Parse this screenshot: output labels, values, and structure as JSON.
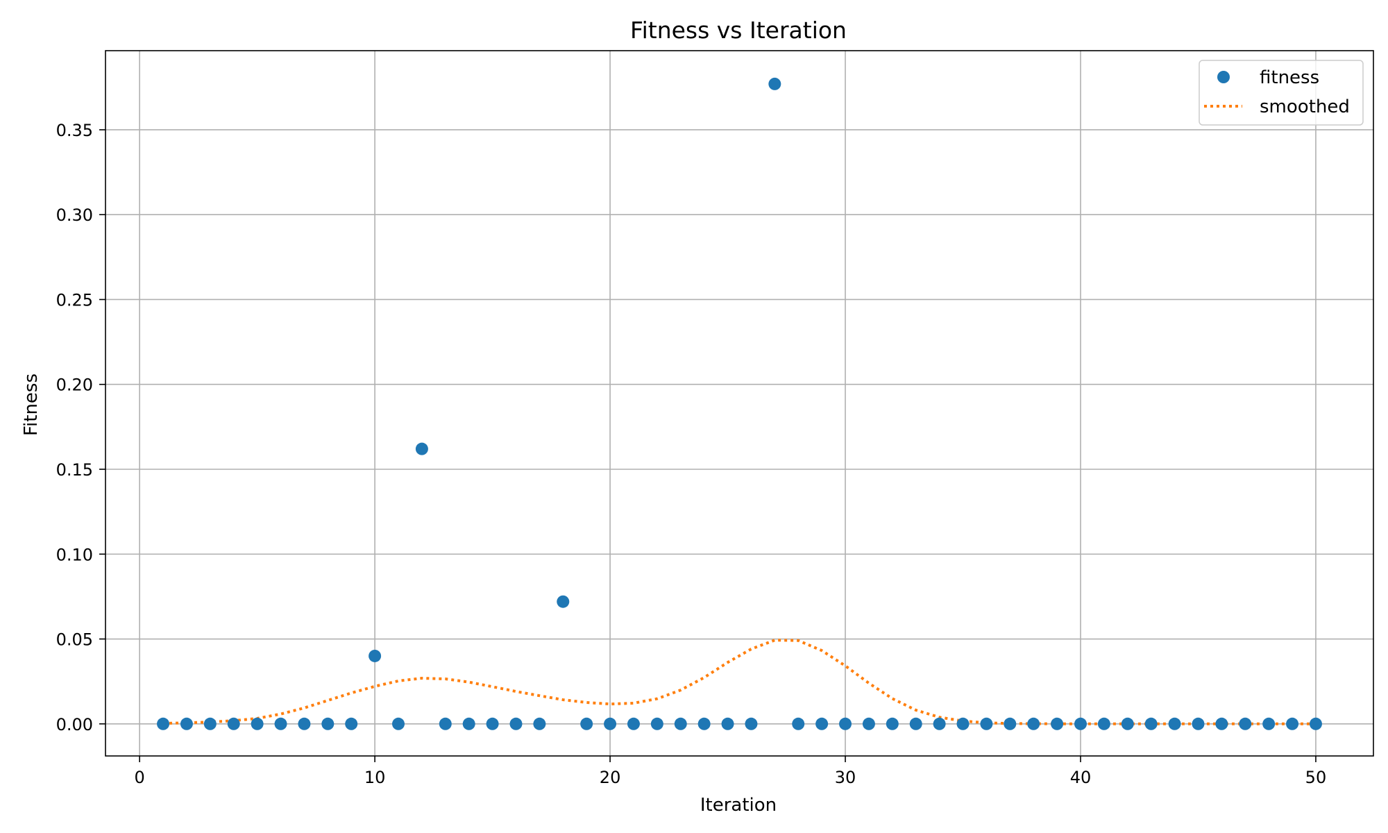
{
  "colors": {
    "fitness": "#1f77b4",
    "smoothed": "#ff7f0e",
    "grid": "#b0b0b0",
    "axes": "#000000"
  },
  "chart_data": {
    "type": "scatter",
    "title": "Fitness vs Iteration",
    "xlabel": "Iteration",
    "ylabel": "Fitness",
    "xlim": [
      -1.45,
      52.45
    ],
    "ylim": [
      -0.0189,
      0.3966
    ],
    "xticks": [
      0,
      10,
      20,
      30,
      40,
      50
    ],
    "xtick_labels": [
      "0",
      "10",
      "20",
      "30",
      "40",
      "50"
    ],
    "yticks": [
      0.0,
      0.05,
      0.1,
      0.15,
      0.2,
      0.25,
      0.3,
      0.35
    ],
    "ytick_labels": [
      "0.00",
      "0.05",
      "0.10",
      "0.15",
      "0.20",
      "0.25",
      "0.30",
      "0.35"
    ],
    "grid": true,
    "legend_position": "top-right",
    "series": [
      {
        "name": "fitness",
        "type": "scatter",
        "x": [
          1,
          2,
          3,
          4,
          5,
          6,
          7,
          8,
          9,
          10,
          11,
          12,
          13,
          14,
          15,
          16,
          17,
          18,
          19,
          20,
          21,
          22,
          23,
          24,
          25,
          26,
          27,
          28,
          29,
          30,
          31,
          32,
          33,
          34,
          35,
          36,
          37,
          38,
          39,
          40,
          41,
          42,
          43,
          44,
          45,
          46,
          47,
          48,
          49,
          50
        ],
        "y": [
          0,
          0,
          0,
          0,
          0,
          0,
          0,
          0,
          0,
          0.04,
          0,
          0.162,
          0,
          0,
          0,
          0,
          0,
          0.072,
          0,
          0,
          0,
          0,
          0,
          0,
          0,
          0,
          0.377,
          0,
          0,
          0,
          0,
          0,
          0,
          0,
          0,
          0,
          0,
          0,
          0,
          0,
          0,
          0,
          0,
          0,
          0,
          0,
          0,
          0,
          0,
          0
        ]
      },
      {
        "name": "smoothed",
        "type": "line",
        "style": "dotted",
        "x": [
          1,
          2,
          3,
          4,
          5,
          6,
          7,
          8,
          9,
          10,
          11,
          12,
          13,
          14,
          15,
          16,
          17,
          18,
          19,
          20,
          21,
          22,
          23,
          24,
          25,
          26,
          27,
          28,
          29,
          30,
          31,
          32,
          33,
          34,
          35,
          36,
          37,
          38,
          39,
          40,
          41,
          42,
          43,
          44,
          45,
          46,
          47,
          48,
          49,
          50
        ],
        "y": [
          0.0003,
          0.0006,
          0.0011,
          0.0019,
          0.0032,
          0.0058,
          0.0094,
          0.0138,
          0.0182,
          0.0221,
          0.0253,
          0.0269,
          0.0265,
          0.0246,
          0.0219,
          0.0191,
          0.0166,
          0.0142,
          0.0126,
          0.0117,
          0.0122,
          0.0148,
          0.0199,
          0.0273,
          0.0362,
          0.0441,
          0.0493,
          0.0491,
          0.0432,
          0.0342,
          0.024,
          0.0149,
          0.0081,
          0.0039,
          0.0017,
          0.0006,
          0.0002,
          0.0001,
          0,
          0,
          0,
          0,
          0,
          0,
          0,
          0,
          0,
          0,
          0,
          0
        ]
      }
    ]
  }
}
